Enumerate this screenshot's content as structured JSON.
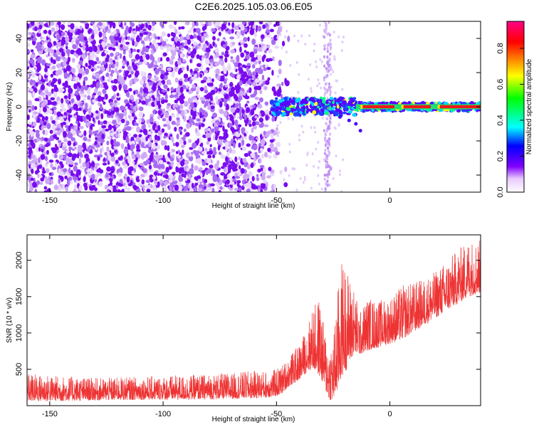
{
  "title": "C2E6.2025.105.03.06.E05",
  "chart_data": [
    {
      "type": "heatmap",
      "xlabel": "Height of straight line (km)",
      "ylabel": "Frequency (Hz)",
      "xlim": [
        -160,
        40
      ],
      "ylim": [
        -50,
        50
      ],
      "xticks": [
        -150,
        -100,
        -50,
        0
      ],
      "yticks": [
        -40,
        -20,
        0,
        20,
        40
      ],
      "colorbar": {
        "label": "Normalized spectral amplitude",
        "range": [
          0,
          0.95
        ],
        "ticks": [
          "0.0",
          "0.2",
          "0.4",
          "0.6",
          "0.8"
        ],
        "colors": [
          "#ffffff",
          "#8000ff",
          "#0000ff",
          "#00ffff",
          "#00ff00",
          "#ffff00",
          "#ff8000",
          "#ff0000",
          "#ff0080"
        ]
      },
      "features": {
        "noise_region_x": [
          -160,
          -50
        ],
        "noise_band_x": [
          -29,
          -26
        ],
        "signal_band": {
          "x_start": -52,
          "x_end": 40,
          "frequency": 0
        },
        "peak_segments": [
          [
            -12,
            2
          ],
          [
            6,
            18
          ],
          [
            22,
            40
          ]
        ]
      }
    },
    {
      "type": "line",
      "xlabel": "Height of straight line (km)",
      "ylabel": "SNR (10 * v/v)",
      "xlim": [
        -160,
        40
      ],
      "ylim": [
        0,
        2350
      ],
      "xticks": [
        -150,
        -100,
        -50,
        0
      ],
      "yticks": [
        500,
        1000,
        1500,
        2000
      ],
      "series": [
        {
          "color": "#ee3333",
          "envelope": {
            "x": [
              -160,
              -150,
              -130,
              -110,
              -90,
              -70,
              -60,
              -52,
              -48,
              -45,
              -40,
              -37,
              -34,
              -31,
              -29,
              -27,
              -25,
              -23,
              -21,
              -19,
              -16,
              -13,
              -10,
              -5,
              0,
              5,
              10,
              15,
              20,
              25,
              30,
              35,
              40
            ],
            "low": [
              60,
              60,
              70,
              80,
              80,
              90,
              100,
              110,
              150,
              250,
              350,
              450,
              500,
              400,
              250,
              80,
              60,
              200,
              400,
              500,
              700,
              700,
              750,
              800,
              850,
              900,
              1000,
              1100,
              1200,
              1300,
              1400,
              1500,
              1550
            ],
            "high": [
              450,
              420,
              380,
              400,
              420,
              450,
              480,
              480,
              550,
              650,
              850,
              1050,
              1350,
              1500,
              1100,
              850,
              950,
              1600,
              2050,
              1900,
              1650,
              1300,
              1500,
              1450,
              1500,
              1650,
              1700,
              1750,
              1850,
              2000,
              2150,
              2300,
              2280
            ]
          }
        }
      ]
    }
  ]
}
